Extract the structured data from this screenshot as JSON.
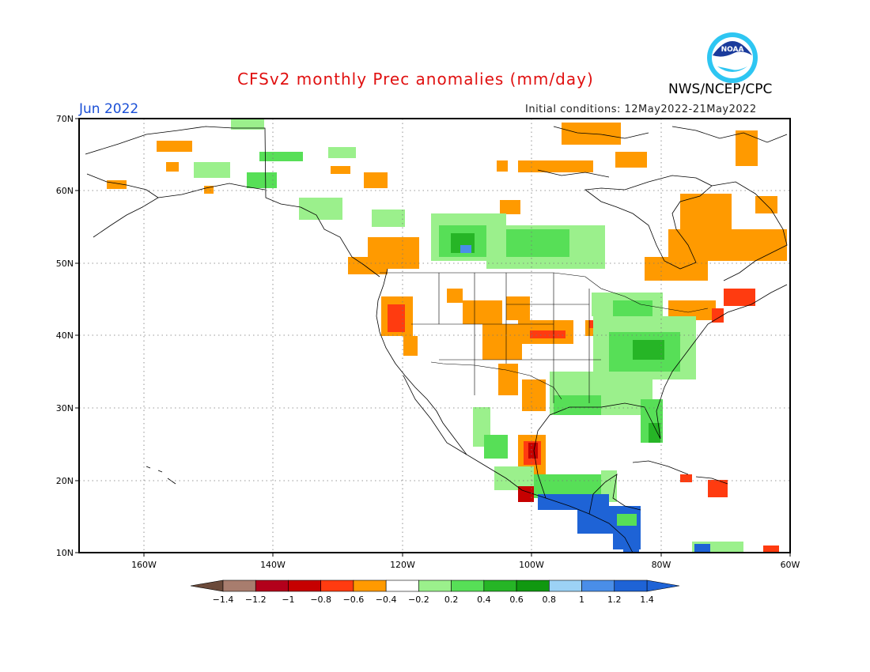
{
  "header": {
    "title": "CFSv2 monthly Prec anomalies (mm/day)",
    "agency": "NWS/NCEP/CPC",
    "month": "Jun 2022",
    "initial_conditions": "Initial conditions: 12May2022-21May2022",
    "logo_text": "NOAA"
  },
  "axes": {
    "lat_labels": [
      "70N",
      "60N",
      "50N",
      "40N",
      "30N",
      "20N",
      "10N"
    ],
    "lon_labels": [
      "160W",
      "140W",
      "120W",
      "100W",
      "80W",
      "60W"
    ]
  },
  "colorbar": {
    "labels": [
      "-1.4",
      "-1.2",
      "-1",
      "-0.8",
      "-0.6",
      "-0.4",
      "-0.2",
      "0.2",
      "0.4",
      "0.6",
      "0.8",
      "1",
      "1.2",
      "1.4"
    ],
    "colors": [
      "#6b4a3a",
      "#a87d6e",
      "#b3001b",
      "#c60000",
      "#ff3b10",
      "#ff9a00",
      "#ffffff",
      "#9bf08c",
      "#57df57",
      "#26b526",
      "#109810",
      "#9cd2f5",
      "#4a8ee8",
      "#1e63d6"
    ],
    "left_arrow_color": "#6b4a3a",
    "right_arrow_color": "#1e63d6"
  },
  "anomaly_colors": {
    "dry_light": "#ff9a00",
    "dry_mid": "#ff3b10",
    "dry_strong": "#c60000",
    "wet_light": "#9bf08c",
    "wet_mid": "#57df57",
    "wet_strong": "#26b526",
    "wet_very": "#109810",
    "wet_extreme": "#1e63d6",
    "wet_blue_light": "#4a8ee8"
  }
}
